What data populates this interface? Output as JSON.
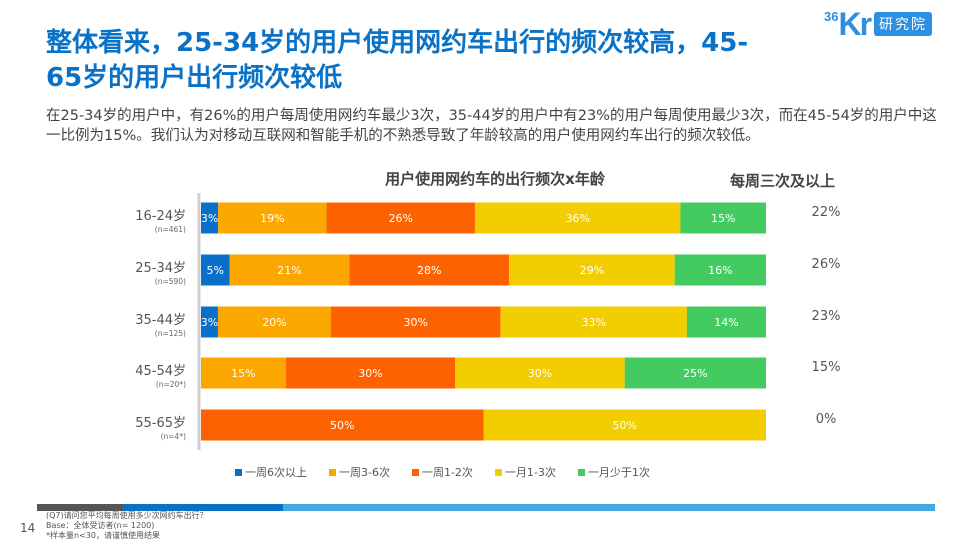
{
  "header": {
    "title": "整体看来，25-34岁的用户使用网约车出行的频次较高，45-65岁的用户出行频次较低",
    "title_line1": "整体看来，25-34岁的用户使用网约车出行的频次较高，45-",
    "title_line2": "65岁的用户出行频次较低",
    "logo_number": "36",
    "logo_kr": "Kr",
    "logo_badge": "研究院"
  },
  "description": "在25-34岁的用户中，有26%的用户每周使用网约车最少3次，35-44岁的用户中有23%的用户每周使用最少3次，而在45-54岁的用户中这一比例为15%。我们认为对移动互联网和智能手机的不熟悉导致了年龄较高的用户使用网约车出行的频次较低。",
  "side_title": "每周三次及以上",
  "colors": {
    "title": "#0a72c6",
    "stripe_gray": "#555555",
    "stripe_dark_blue": "#0a72c6",
    "stripe_light_blue": "#45a8de"
  },
  "chart_data": {
    "type": "bar",
    "orientation": "horizontal",
    "stacked": true,
    "percent_stacked": true,
    "title": "用户使用网约车的出行频次x年龄",
    "categories": [
      "16-24岁",
      "25-34岁",
      "35-44岁",
      "45-54岁",
      "55-65岁"
    ],
    "sample_sizes": [
      "(n=461)",
      "(n=590)",
      "(n=125)",
      "(n=20*)",
      "(n=4*)"
    ],
    "series": [
      {
        "name": "一周6次以上",
        "color": "#0a6fc9",
        "values": [
          3,
          5,
          3,
          0,
          0
        ]
      },
      {
        "name": "一周3-6次",
        "color": "#fca600",
        "values": [
          19,
          21,
          20,
          15,
          0
        ]
      },
      {
        "name": "一周1-2次",
        "color": "#fd6200",
        "values": [
          26,
          28,
          30,
          30,
          50
        ]
      },
      {
        "name": "一月1-3次",
        "color": "#f2cd00",
        "values": [
          36,
          29,
          33,
          30,
          50
        ]
      },
      {
        "name": "一月少于1次",
        "color": "#43cb62",
        "values": [
          15,
          16,
          14,
          25,
          0
        ]
      }
    ],
    "labels": [
      [
        "3%",
        "19%",
        "26%",
        "36%",
        "15%"
      ],
      [
        "5%",
        "21%",
        "28%",
        "29%",
        "16%"
      ],
      [
        "3%",
        "20%",
        "30%",
        "33%",
        "14%"
      ],
      [
        "",
        "15%",
        "30%",
        "30%",
        "25%"
      ],
      [
        "",
        "",
        "50%",
        "50%",
        ""
      ]
    ],
    "weekly_3plus": [
      "22%",
      "26%",
      "23%",
      "15%",
      "0%"
    ],
    "legend_position": "bottom",
    "grid": false
  },
  "footer": {
    "page_number": "14",
    "note1": "(Q7)请问您平均每周使用多少次网约车出行？",
    "note2": "Base：全体受访者(n= 1200)",
    "note3": "*样本量n<30，请谨慎使用结果"
  }
}
